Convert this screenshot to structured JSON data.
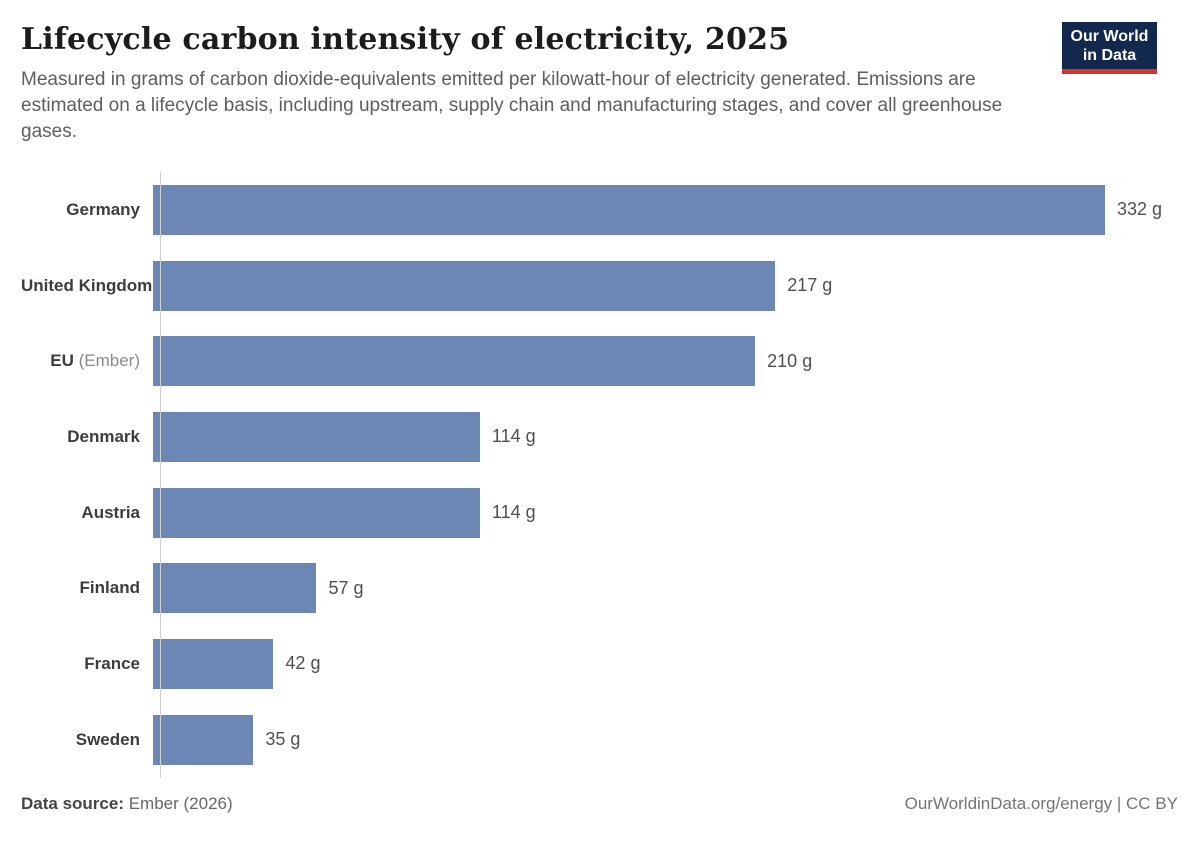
{
  "header": {
    "title": "Lifecycle carbon intensity of electricity, 2025",
    "subtitle": "Measured in grams of carbon dioxide-equivalents emitted per kilowatt-hour of electricity generated. Emissions are estimated on a lifecycle basis, including upstream, supply chain and manufacturing stages, and cover all greenhouse gases."
  },
  "logo": {
    "line1": "Our World",
    "line2": "in Data",
    "bg_color": "#12294d",
    "strip_color": "#d9342b"
  },
  "chart_data": {
    "type": "bar",
    "orientation": "horizontal",
    "title": "Lifecycle carbon intensity of electricity, 2025",
    "unit": "grams CO2-equivalents per kWh",
    "bar_color": "#6d87b5",
    "grid": false,
    "legend": "none",
    "xlim": [
      0,
      332
    ],
    "categories": [
      "Germany",
      "United Kingdom",
      "EU (Ember)",
      "Denmark",
      "Austria",
      "Finland",
      "France",
      "Sweden"
    ],
    "values": [
      332,
      217,
      210,
      114,
      114,
      57,
      42,
      35
    ],
    "rows": [
      {
        "label": "Germany",
        "suffix": "",
        "value": 332,
        "value_label": "332 g"
      },
      {
        "label": "United Kingdom",
        "suffix": "",
        "value": 217,
        "value_label": "217 g"
      },
      {
        "label": "EU",
        "suffix": " (Ember)",
        "value": 210,
        "value_label": "210 g"
      },
      {
        "label": "Denmark",
        "suffix": "",
        "value": 114,
        "value_label": "114 g"
      },
      {
        "label": "Austria",
        "suffix": "",
        "value": 114,
        "value_label": "114 g"
      },
      {
        "label": "Finland",
        "suffix": "",
        "value": 57,
        "value_label": "57 g"
      },
      {
        "label": "France",
        "suffix": "",
        "value": 42,
        "value_label": "42 g"
      },
      {
        "label": "Sweden",
        "suffix": "",
        "value": 35,
        "value_label": "35 g"
      }
    ]
  },
  "footer": {
    "source_label": "Data source:",
    "source_value": " Ember (2026)",
    "right_text": "OurWorldinData.org/energy | CC BY"
  }
}
